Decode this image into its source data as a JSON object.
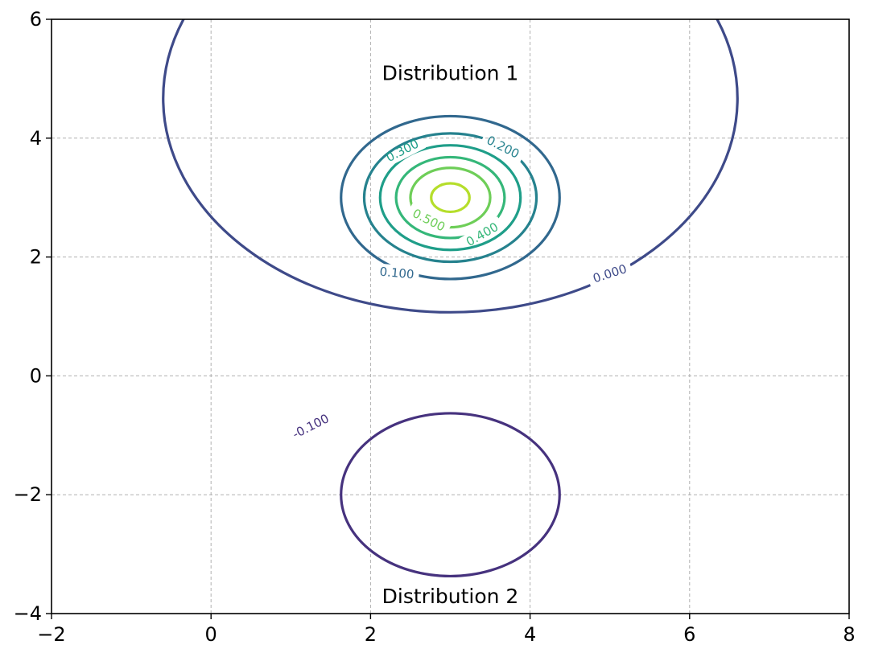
{
  "chart_data": {
    "type": "contour",
    "title": "",
    "xlabel": "",
    "ylabel": "",
    "xlim": [
      -2,
      8
    ],
    "ylim": [
      -4,
      6
    ],
    "x_ticks": [
      -2,
      0,
      2,
      4,
      6,
      8
    ],
    "y_ticks": [
      -4,
      -2,
      0,
      2,
      4,
      6
    ],
    "x_tick_labels": [
      "−2",
      "0",
      "2",
      "4",
      "6",
      "8"
    ],
    "y_tick_labels": [
      "−4",
      "−2",
      "0",
      "2",
      "4",
      "6"
    ],
    "grid": true,
    "grid_style": "dashed",
    "colormap": "viridis",
    "annotations": [
      {
        "text": "Distribution 1",
        "x": 3,
        "y": 5.1
      },
      {
        "text": "Distribution 2",
        "x": 3,
        "y": -3.7
      }
    ],
    "contours": [
      {
        "level": -0.1,
        "label": "-0.100",
        "color": "#46327e",
        "center": [
          3,
          -2
        ],
        "rx": 1.37,
        "ry": 1.37,
        "label_at": [
          1.25,
          -0.85
        ],
        "label_rot": -27
      },
      {
        "level": 0.0,
        "label": "0.000",
        "color": "#3e4a89",
        "center": [
          3,
          4.67
        ],
        "rx": 3.6,
        "ry": 3.6,
        "label_at": [
          5.0,
          1.72
        ],
        "label_rot": -18
      },
      {
        "level": 0.1,
        "label": "0.100",
        "color": "#31688e",
        "center": [
          3,
          3
        ],
        "rx": 1.37,
        "ry": 1.37,
        "label_at": [
          2.33,
          1.73
        ],
        "label_rot": 5
      },
      {
        "level": 0.2,
        "label": "0.200",
        "color": "#26828e",
        "center": [
          3,
          3
        ],
        "rx": 1.08,
        "ry": 1.08,
        "label_at": [
          3.66,
          3.85
        ],
        "label_rot": 27
      },
      {
        "level": 0.3,
        "label": "0.300",
        "color": "#1f9e89",
        "center": [
          3,
          3
        ],
        "rx": 0.88,
        "ry": 0.88,
        "label_at": [
          2.4,
          3.79
        ],
        "label_rot": -27
      },
      {
        "level": 0.4,
        "label": "0.400",
        "color": "#35b779",
        "center": [
          3,
          3
        ],
        "rx": 0.68,
        "ry": 0.68,
        "label_at": [
          3.4,
          2.38
        ],
        "label_rot": -30
      },
      {
        "level": 0.5,
        "label": "0.500",
        "color": "#6ece58",
        "center": [
          3,
          3
        ],
        "rx": 0.5,
        "ry": 0.5,
        "label_at": [
          2.73,
          2.62
        ],
        "label_rot": 27
      },
      {
        "level": 0.6,
        "label": "",
        "color": "#b5de2b",
        "center": [
          3,
          3
        ],
        "rx": 0.24,
        "ry": 0.24,
        "label_at": null,
        "label_rot": 0
      }
    ]
  }
}
